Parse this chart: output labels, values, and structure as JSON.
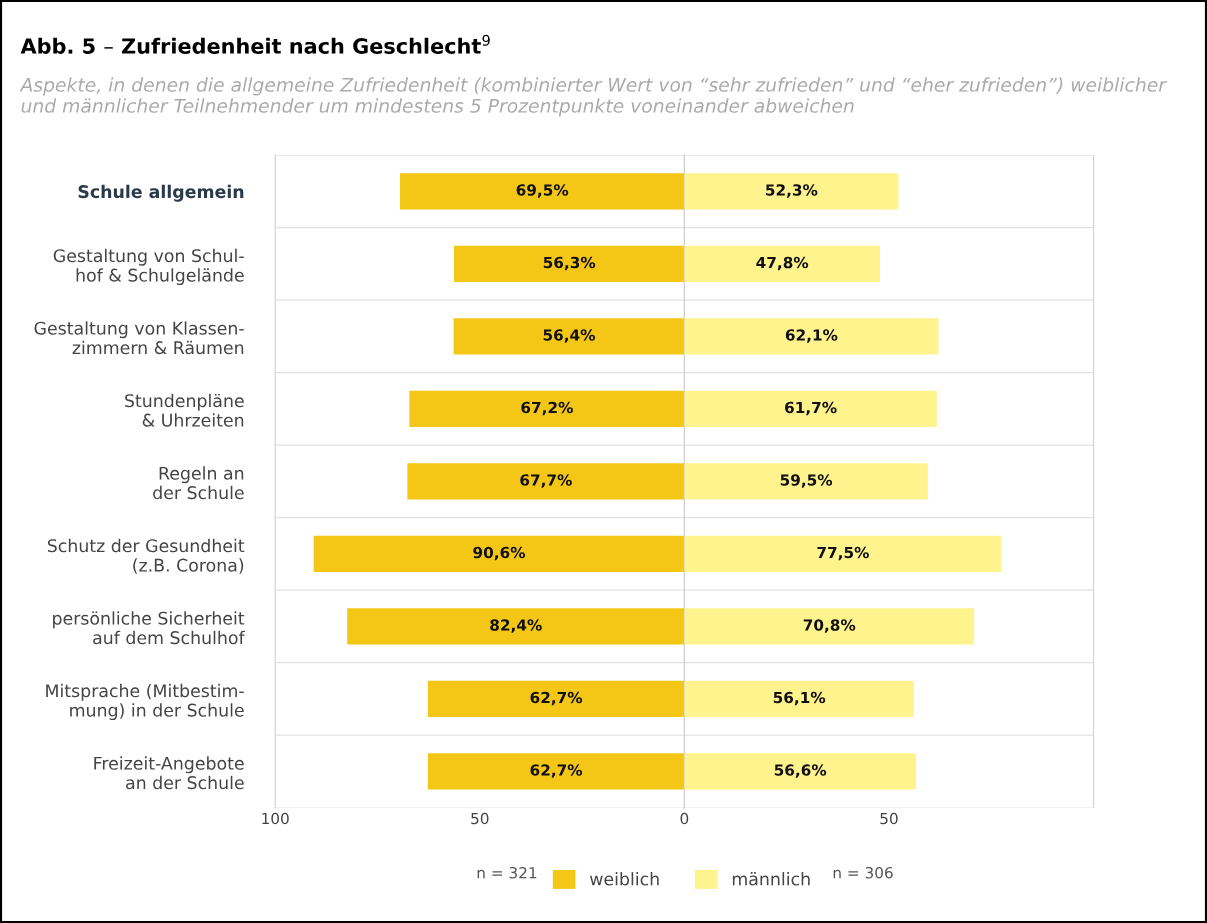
{
  "chart_data": [
    {
      "type": "bar",
      "orientation": "horizontal",
      "title": "Abb. 5 – Zufriedenheit nach Geschlecht$^{9}$",
      "subtitle": "Aspekte, in denen die allgemeine Zufriedenheit (kombinierter Wert von “sehr zufrieden” und “eher zufrieden”) weiblicher und männlicher Teilnehmender um mindestens 5 Prozentpunkte voneinander abweichen",
      "categories": [
        "Schule allgemein",
        "Gestaltung von Schul-\nhof & Schulgelände",
        "Gestaltung von Klassen-\nzimmern & Räumen",
        "Stundenpläne\n& Uhrzeiten",
        "Regeln an\nder Schule",
        "Schutz der Gesundheit\n(z.B. Corona)",
        "persönliche Sicherheit\nauf dem Schulhof",
        "Mitsprache (Mitbestim-\nmung) in der Schule",
        "Freizeit-Angebote\nan der Schule"
      ],
      "series": [
        {
          "name": "weiblich",
          "color": "#f4c717",
          "values": [
            69.5,
            56.3,
            56.4,
            67.2,
            67.7,
            90.6,
            82.4,
            62.7,
            62.7
          ],
          "value_labels": [
            "69,5%",
            "56,3%",
            "56,4%",
            "67,2%",
            "67,7%",
            "90,6%",
            "82,4%",
            "62,7%",
            "62,7%"
          ]
        }
      ],
      "xlim": [
        100,
        0
      ],
      "xticks": [
        100,
        50
      ],
      "grid": "y",
      "legend": "bottom",
      "annotations": [
        "n = 321"
      ]
    },
    {
      "type": "bar",
      "orientation": "horizontal",
      "categories": [
        null,
        null,
        null,
        null,
        null,
        null,
        null,
        null,
        null
      ],
      "series": [
        {
          "name": "männlich",
          "color": "#fff38e",
          "values": [
            52.3,
            47.8,
            62.1,
            61.7,
            59.5,
            77.5,
            70.8,
            56.1,
            56.6
          ],
          "value_labels": [
            "52,3%",
            "47,8%",
            "62,1%",
            "61,7%",
            "59,5%",
            "77,5%",
            "70,8%",
            "56,1%",
            "56,6%"
          ]
        }
      ],
      "xlim": [
        0,
        100
      ],
      "xticks": [
        0,
        50
      ],
      "tick_labels": "x",
      "grid": "y",
      "legend": "bottom",
      "annotations": [
        "n = 306"
      ]
    }
  ]
}
